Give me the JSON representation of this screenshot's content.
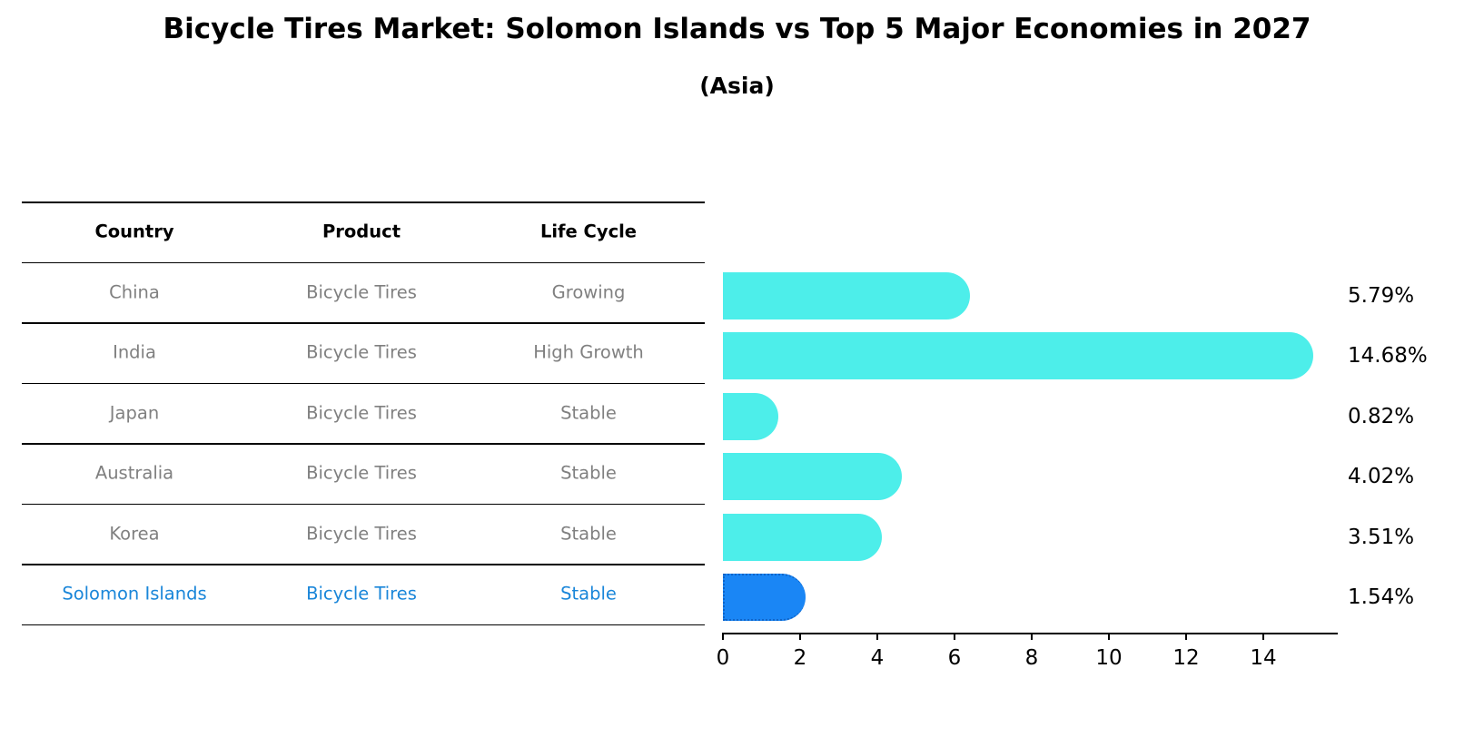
{
  "header": {
    "title": "Bicycle Tires Market: Solomon Islands vs Top 5 Major Economies in 2027",
    "subtitle": "(Asia)"
  },
  "table": {
    "columns": [
      "Country",
      "Product",
      "Life Cycle"
    ],
    "rows": [
      {
        "country": "China",
        "product": "Bicycle Tires",
        "life_cycle": "Growing",
        "highlight": false
      },
      {
        "country": "India",
        "product": "Bicycle Tires",
        "life_cycle": "High Growth",
        "highlight": false
      },
      {
        "country": "Japan",
        "product": "Bicycle Tires",
        "life_cycle": "Stable",
        "highlight": false
      },
      {
        "country": "Australia",
        "product": "Bicycle Tires",
        "life_cycle": "Stable",
        "highlight": false
      },
      {
        "country": "Korea",
        "product": "Bicycle Tires",
        "life_cycle": "Stable",
        "highlight": false
      },
      {
        "country": "Solomon Islands",
        "product": "Bicycle Tires",
        "life_cycle": "Stable",
        "highlight": true
      }
    ]
  },
  "colors": {
    "bar": "#4deeea",
    "bar_highlight": "#1a86f5",
    "text_muted": "#808080",
    "text_highlight": "#1a86d9"
  },
  "chart_data": {
    "type": "bar",
    "orientation": "horizontal",
    "title": "Bicycle Tires Market: Solomon Islands vs Top 5 Major Economies in 2027",
    "subtitle": "(Asia)",
    "categories": [
      "China",
      "India",
      "Japan",
      "Australia",
      "Korea",
      "Solomon Islands"
    ],
    "values": [
      5.79,
      14.68,
      0.82,
      4.02,
      3.51,
      1.54
    ],
    "value_labels": [
      "5.79%",
      "14.68%",
      "0.82%",
      "4.02%",
      "3.51%",
      "1.54%"
    ],
    "highlight": "Solomon Islands",
    "xlabel": "",
    "ylabel": "",
    "xticks": [
      0,
      2,
      4,
      6,
      8,
      10,
      12,
      14
    ],
    "xlim": [
      0,
      15.4
    ],
    "grid": false,
    "legend": null
  }
}
